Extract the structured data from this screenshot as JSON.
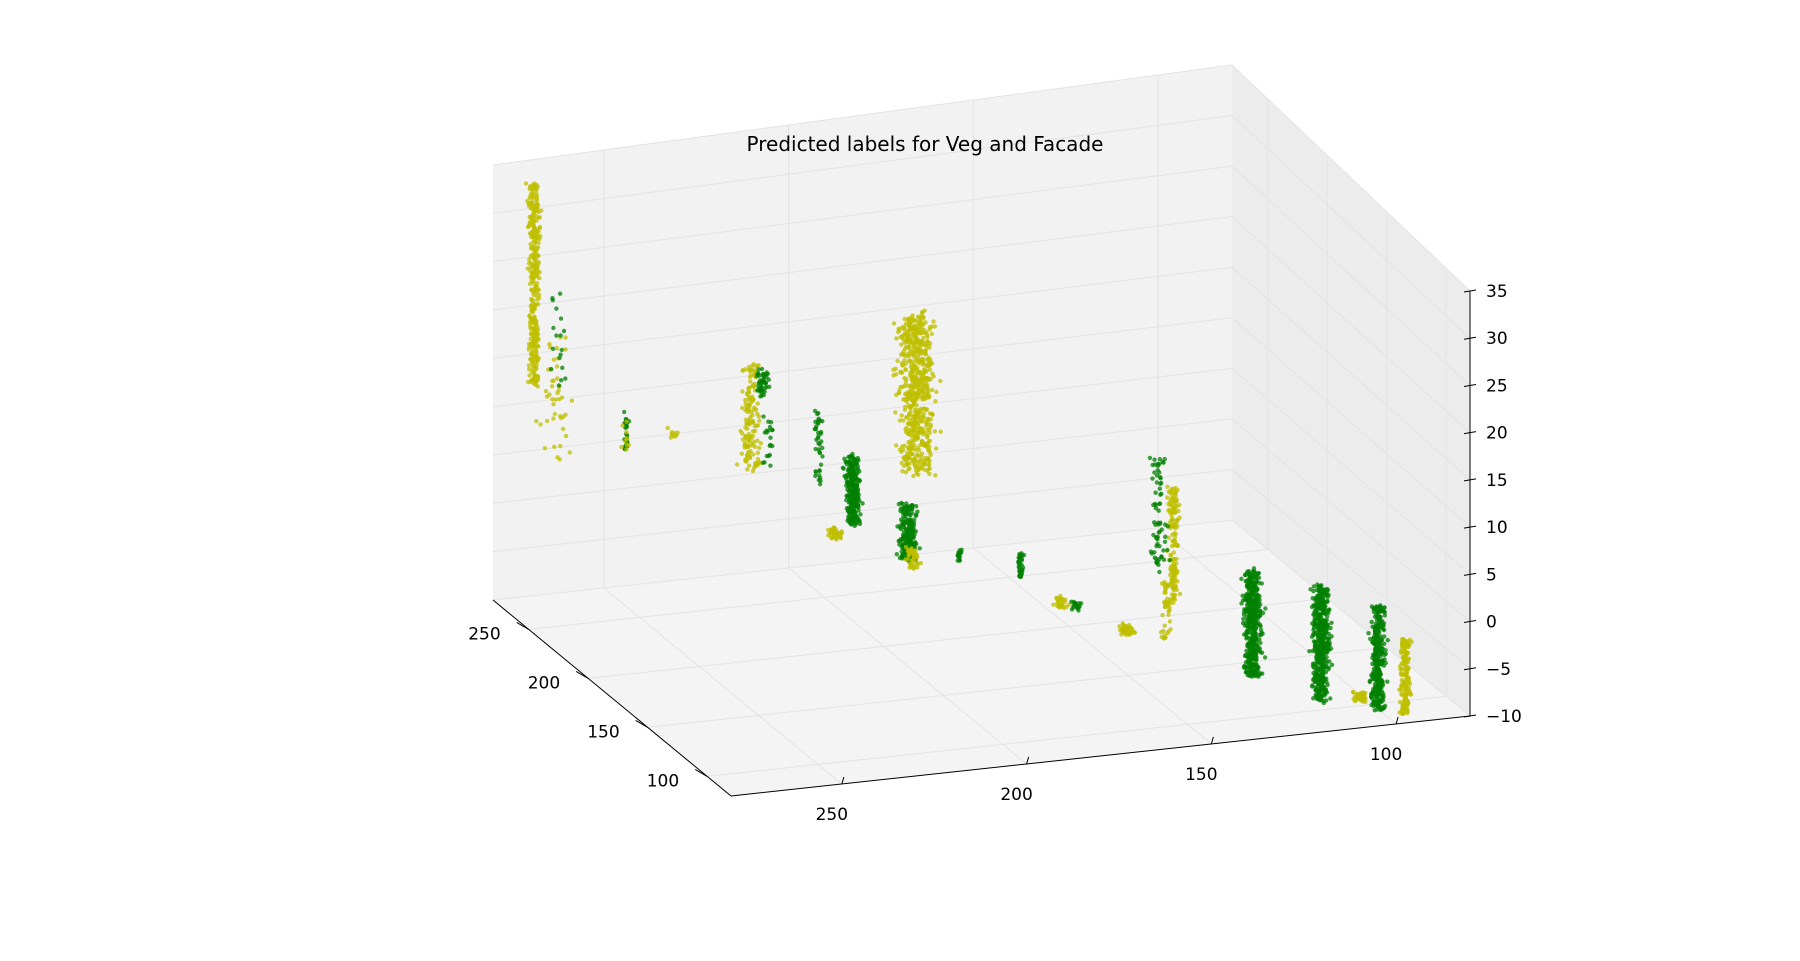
{
  "chart_data": {
    "type": "scatter",
    "projection": "3d",
    "title": "Predicted labels for Veg and Facade",
    "xlabel": "",
    "ylabel": "",
    "zlabel": "",
    "colors": {
      "Veg": "#008000",
      "Facade": "#bfbf00",
      "pane_floor": "#f4f4f4",
      "pane_left": "#f2f2f2",
      "pane_right": "#ececec",
      "grid": "#e3e3e3",
      "axis": "#000000"
    },
    "axes": {
      "x": {
        "range": [
          80,
          280
        ],
        "ticks": [
          250,
          200,
          150,
          100
        ],
        "tick_labels": [
          "250",
          "200",
          "150",
          "100"
        ]
      },
      "y": {
        "range": [
          80,
          280
        ],
        "ticks": [
          250,
          200,
          150,
          100
        ],
        "tick_labels": [
          "250",
          "200",
          "150",
          "100"
        ]
      },
      "z": {
        "range": [
          -10,
          35
        ],
        "ticks": [
          35,
          30,
          25,
          20,
          15,
          10,
          5,
          0,
          -5,
          -10
        ],
        "tick_labels": [
          "35",
          "30",
          "25",
          "20",
          "15",
          "10",
          "5",
          "0",
          "−5",
          "−10"
        ]
      }
    },
    "clusters": [
      {
        "label": "Facade",
        "x": 261,
        "y": 275,
        "z_min": 14,
        "z_max": 35,
        "spread": 3,
        "n": 340
      },
      {
        "label": "Facade",
        "x": 252,
        "y": 272,
        "z_min": 7,
        "z_max": 20,
        "spread": 9,
        "n": 45
      },
      {
        "label": "Veg",
        "x": 256,
        "y": 270,
        "z_min": 14,
        "z_max": 24,
        "spread": 4,
        "n": 18
      },
      {
        "label": "Veg",
        "x": 246,
        "y": 255,
        "z_min": 8,
        "z_max": 12,
        "spread": 1.5,
        "n": 28
      },
      {
        "label": "Facade",
        "x": 246,
        "y": 255,
        "z_min": 8,
        "z_max": 11,
        "spread": 2,
        "n": 10
      },
      {
        "label": "Facade",
        "x": 236,
        "y": 245,
        "z_min": 10,
        "z_max": 11,
        "spread": 3,
        "n": 10
      },
      {
        "label": "Facade",
        "x": 225,
        "y": 228,
        "z_min": 7,
        "z_max": 18,
        "spread": 6,
        "n": 150
      },
      {
        "label": "Veg",
        "x": 221,
        "y": 226,
        "z_min": 15,
        "z_max": 18,
        "spread": 4,
        "n": 45
      },
      {
        "label": "Veg",
        "x": 219,
        "y": 225,
        "z_min": 8,
        "z_max": 13,
        "spread": 4,
        "n": 20
      },
      {
        "label": "Facade",
        "x": 191,
        "y": 194,
        "z_min": 9,
        "z_max": 25,
        "spread": 10,
        "n": 620
      },
      {
        "label": "Veg",
        "x": 201,
        "y": 208,
        "z_min": 3,
        "z_max": 10,
        "spread": 4,
        "n": 260
      },
      {
        "label": "Veg",
        "x": 189,
        "y": 197,
        "z_min": 0,
        "z_max": 6,
        "spread": 5,
        "n": 220
      },
      {
        "label": "Veg",
        "x": 208,
        "y": 215,
        "z_min": 7,
        "z_max": 15,
        "spread": 3,
        "n": 40
      },
      {
        "label": "Facade",
        "x": 207,
        "y": 211,
        "z_min": 1,
        "z_max": 2,
        "spread": 4,
        "n": 40
      },
      {
        "label": "Facade",
        "x": 191,
        "y": 195,
        "z_min": -1,
        "z_max": 1,
        "spread": 4,
        "n": 45
      },
      {
        "label": "Veg",
        "x": 183,
        "y": 185,
        "z_min": 0,
        "z_max": 1.5,
        "spread": 1.5,
        "n": 15
      },
      {
        "label": "Veg",
        "x": 172,
        "y": 172,
        "z_min": -1,
        "z_max": 1.5,
        "spread": 1.5,
        "n": 40
      },
      {
        "label": "Facade",
        "x": 166,
        "y": 163,
        "z_min": -4,
        "z_max": -3,
        "spread": 4,
        "n": 35
      },
      {
        "label": "Veg",
        "x": 162,
        "y": 160,
        "z_min": -4,
        "z_max": -3,
        "spread": 3,
        "n": 20
      },
      {
        "label": "Facade",
        "x": 152,
        "y": 150,
        "z_min": -6,
        "z_max": -5,
        "spread": 4,
        "n": 45
      },
      {
        "label": "Facade",
        "x": 145,
        "y": 141,
        "z_min": -6,
        "z_max": 0,
        "spread": 3,
        "n": 40
      },
      {
        "label": "Facade",
        "x": 143,
        "y": 140,
        "z_min": -2,
        "z_max": 10,
        "spread": 3,
        "n": 160
      },
      {
        "label": "Veg",
        "x": 146,
        "y": 143,
        "z_min": 1,
        "z_max": 13,
        "spread": 4,
        "n": 70
      },
      {
        "label": "Veg",
        "x": 120,
        "y": 126,
        "z_min": -8,
        "z_max": 3,
        "spread": 5,
        "n": 440
      },
      {
        "label": "Veg",
        "x": 109,
        "y": 111,
        "z_min": -10,
        "z_max": 2,
        "spread": 5,
        "n": 460
      },
      {
        "label": "Veg",
        "x": 95,
        "y": 100,
        "z_min": -10,
        "z_max": 1,
        "spread": 4,
        "n": 330
      },
      {
        "label": "Facade",
        "x": 88,
        "y": 95,
        "z_min": -10,
        "z_max": -2,
        "spread": 3,
        "n": 170
      },
      {
        "label": "Facade",
        "x": 104,
        "y": 102,
        "z_min": -10,
        "z_max": -9,
        "spread": 4,
        "n": 45
      }
    ]
  }
}
